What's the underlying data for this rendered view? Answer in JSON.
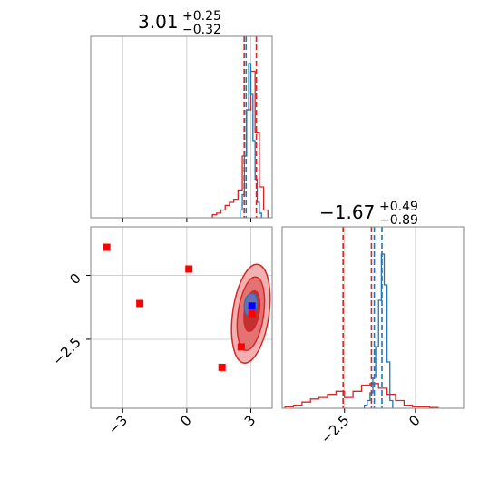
{
  "chart_data": {
    "type": "corner",
    "panels": [
      {
        "id": "hist-p1",
        "type": "histogram",
        "title": {
          "value": "3.01",
          "plus": "+0.25",
          "minus": "−0.32"
        },
        "xlim": [
          -4.5,
          4.0
        ],
        "xticks": [
          -3,
          0,
          3
        ],
        "grid": true,
        "series": [
          {
            "name": "red",
            "color": "#d62728",
            "edges": [
              1.2,
              1.4,
              1.6,
              1.8,
              2.0,
              2.2,
              2.4,
              2.6,
              2.8,
              3.0,
              3.2,
              3.4,
              3.6,
              3.8
            ],
            "counts": [
              0.02,
              0.03,
              0.05,
              0.08,
              0.1,
              0.12,
              0.18,
              0.4,
              0.7,
              0.95,
              0.55,
              0.2,
              0.05
            ]
          },
          {
            "name": "blue",
            "color": "#1f77b4",
            "edges": [
              2.5,
              2.6,
              2.7,
              2.8,
              2.9,
              3.0,
              3.1,
              3.2,
              3.3,
              3.4,
              3.5
            ],
            "counts": [
              0.05,
              0.15,
              0.4,
              0.7,
              1.0,
              0.8,
              0.5,
              0.25,
              0.1,
              0.03
            ]
          }
        ],
        "vlines": [
          {
            "x": 2.69,
            "color": "#d62728"
          },
          {
            "x": 2.78,
            "color": "#1f77b4"
          },
          {
            "x": 3.26,
            "color": "#d62728"
          }
        ]
      },
      {
        "id": "hist-p2",
        "type": "histogram",
        "title": {
          "value": "−1.67",
          "plus": "+0.49",
          "minus": "−0.89"
        },
        "xlim": [
          -4.7,
          1.7
        ],
        "xticks": [
          -2.5,
          0.0
        ],
        "grid": true,
        "series": [
          {
            "name": "red",
            "color": "#d62728",
            "edges": [
              -4.6,
              -4.3,
              -4.0,
              -3.7,
              -3.4,
              -3.1,
              -2.8,
              -2.5,
              -2.2,
              -1.9,
              -1.6,
              -1.3,
              -1.0,
              -0.7,
              -0.4,
              -0.1,
              0.2,
              0.5,
              0.8
            ],
            "counts": [
              0.01,
              0.02,
              0.04,
              0.06,
              0.07,
              0.09,
              0.11,
              0.07,
              0.11,
              0.15,
              0.16,
              0.13,
              0.09,
              0.05,
              0.02,
              0.01,
              0.01,
              0.005
            ]
          },
          {
            "name": "blue",
            "color": "#1f77b4",
            "edges": [
              -1.8,
              -1.7,
              -1.6,
              -1.5,
              -1.4,
              -1.3,
              -1.2,
              -1.1,
              -1.0,
              -0.9,
              -0.8
            ],
            "counts": [
              0.02,
              0.05,
              0.1,
              0.2,
              0.4,
              0.7,
              1.0,
              0.8,
              0.3,
              0.05
            ]
          }
        ],
        "vlines": [
          {
            "x": -2.55,
            "color": "#d62728"
          },
          {
            "x": -1.55,
            "color": "#d62728"
          },
          {
            "x": -1.45,
            "color": "#1f77b4"
          },
          {
            "x": -1.18,
            "color": "#1f77b4"
          }
        ]
      },
      {
        "id": "scatter-p1-p2",
        "type": "scatter",
        "xlim": [
          -4.5,
          4.0
        ],
        "ylim": [
          -5.2,
          1.9
        ],
        "xticks": [
          -3,
          0,
          3
        ],
        "yticks": [
          0.0,
          -2.5
        ],
        "grid": true,
        "red_points": [
          [
            -3.75,
            1.1
          ],
          [
            -2.2,
            -1.1
          ],
          [
            0.1,
            0.25
          ],
          [
            1.65,
            -3.6
          ],
          [
            2.55,
            -2.8
          ],
          [
            3.05,
            -1.5
          ]
        ],
        "blue_points": [
          [
            3.05,
            -1.2
          ]
        ],
        "contours": [
          {
            "cx": 3.0,
            "cy": -1.5,
            "rx": 0.85,
            "ry": 1.95,
            "fill": "#f1b1b1",
            "stroke": "#d62728"
          },
          {
            "cx": 3.0,
            "cy": -1.5,
            "rx": 0.6,
            "ry": 1.45,
            "fill": "#e37373",
            "stroke": "#d62728"
          },
          {
            "cx": 3.05,
            "cy": -1.4,
            "rx": 0.35,
            "ry": 0.8,
            "fill": "#c23030",
            "stroke": "#d62728"
          },
          {
            "cx": 3.0,
            "cy": -1.15,
            "rx": 0.3,
            "ry": 0.45,
            "fill": "#6e6fb3",
            "stroke": "#1f77b4"
          }
        ]
      }
    ]
  }
}
